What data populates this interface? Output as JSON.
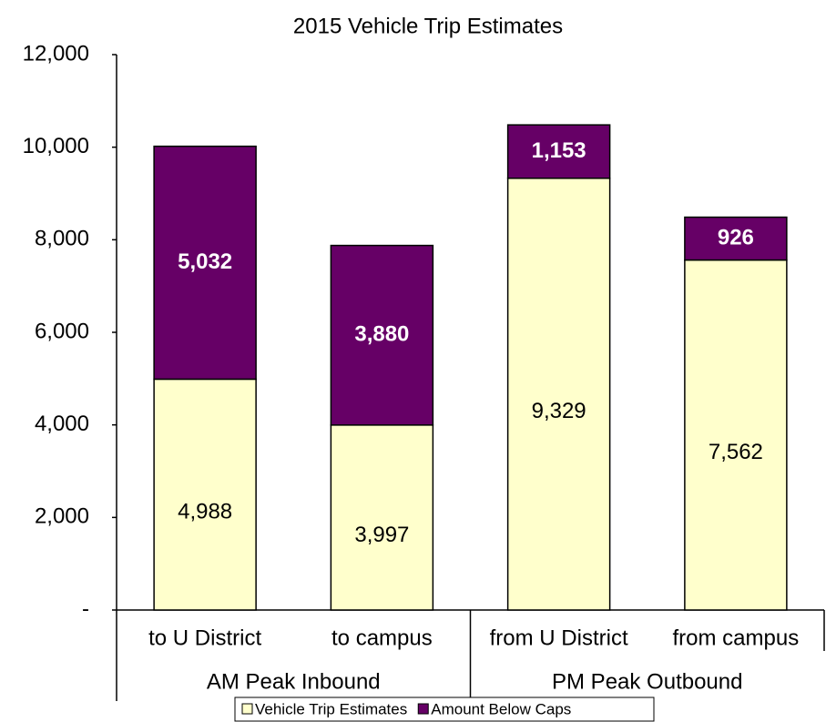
{
  "chart_data": {
    "type": "stacked-bar",
    "title": "2015 Vehicle Trip Estimates",
    "categories": [
      "to U District",
      "to campus",
      "from U District",
      "from campus"
    ],
    "groups": [
      "AM Peak Inbound",
      "PM Peak Outbound"
    ],
    "series": [
      {
        "name": "Vehicle Trip Estimates",
        "color": "#ffffcc",
        "values": [
          4988,
          3997,
          9329,
          7562
        ],
        "value_labels": [
          "4,988",
          "3,997",
          "9,329",
          "7,562"
        ]
      },
      {
        "name": "Amount Below Caps",
        "color": "#660066",
        "values": [
          5032,
          3880,
          1153,
          926
        ],
        "value_labels": [
          "5,032",
          "3,880",
          "1,153",
          "926"
        ]
      }
    ],
    "ylim": [
      0,
      12000
    ],
    "yticks": [
      {
        "value": 0,
        "label": "-"
      },
      {
        "value": 2000,
        "label": "2,000"
      },
      {
        "value": 4000,
        "label": "4,000"
      },
      {
        "value": 6000,
        "label": "6,000"
      },
      {
        "value": 8000,
        "label": "8,000"
      },
      {
        "value": 10000,
        "label": "10,000"
      },
      {
        "value": 12000,
        "label": "12,000"
      }
    ],
    "grid": false,
    "legend": "bottom"
  }
}
